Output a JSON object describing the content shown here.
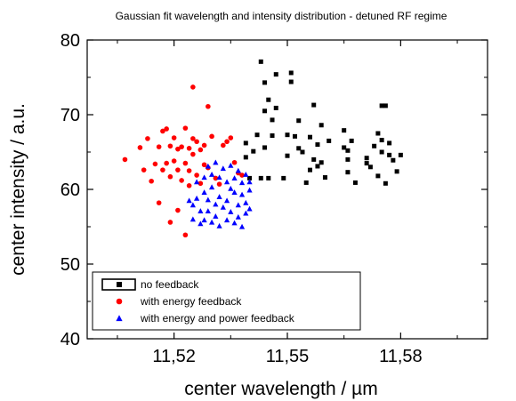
{
  "chart_data": {
    "type": "scatter",
    "title": "Gaussian fit wavelength and intensity distribution - detuned RF regime",
    "xlabel": "center wavelength / µm",
    "ylabel": "center intensity / a.u.",
    "xlim": [
      11.497,
      11.603
    ],
    "ylim": [
      40,
      80
    ],
    "x_ticks": [
      11.52,
      11.55,
      11.58
    ],
    "x_tick_labels": [
      "11,52",
      "11,55",
      "11,58"
    ],
    "x_minor_ticks": [
      11.505,
      11.535,
      11.565,
      11.595
    ],
    "y_ticks": [
      40,
      50,
      60,
      70,
      80
    ],
    "y_tick_labels": [
      "40",
      "50",
      "60",
      "70",
      "80"
    ],
    "y_minor_ticks": [
      45,
      55,
      65,
      75
    ],
    "grid": false,
    "legend_position": "bottom-left",
    "series": [
      {
        "name": "no feedback",
        "marker": "square",
        "color": "#000000",
        "points": [
          [
            11.539,
            66.2
          ],
          [
            11.539,
            64.3
          ],
          [
            11.54,
            61.5
          ],
          [
            11.541,
            65.1
          ],
          [
            11.542,
            67.3
          ],
          [
            11.543,
            61.5
          ],
          [
            11.543,
            77.1
          ],
          [
            11.544,
            74.3
          ],
          [
            11.544,
            70.5
          ],
          [
            11.544,
            65.6
          ],
          [
            11.545,
            61.5
          ],
          [
            11.545,
            72.0
          ],
          [
            11.546,
            69.3
          ],
          [
            11.546,
            67.2
          ],
          [
            11.547,
            70.9
          ],
          [
            11.547,
            75.4
          ],
          [
            11.549,
            61.5
          ],
          [
            11.55,
            67.3
          ],
          [
            11.55,
            64.5
          ],
          [
            11.551,
            75.6
          ],
          [
            11.551,
            74.4
          ],
          [
            11.552,
            67.1
          ],
          [
            11.553,
            69.2
          ],
          [
            11.553,
            65.5
          ],
          [
            11.554,
            65.0
          ],
          [
            11.555,
            60.9
          ],
          [
            11.556,
            62.6
          ],
          [
            11.556,
            67.0
          ],
          [
            11.557,
            64.0
          ],
          [
            11.557,
            71.3
          ],
          [
            11.558,
            66.0
          ],
          [
            11.558,
            63.1
          ],
          [
            11.559,
            68.6
          ],
          [
            11.559,
            63.6
          ],
          [
            11.56,
            61.6
          ],
          [
            11.561,
            66.5
          ],
          [
            11.565,
            67.9
          ],
          [
            11.565,
            65.6
          ],
          [
            11.566,
            64.0
          ],
          [
            11.566,
            62.3
          ],
          [
            11.566,
            65.2
          ],
          [
            11.567,
            66.5
          ],
          [
            11.568,
            60.9
          ],
          [
            11.571,
            63.5
          ],
          [
            11.571,
            64.2
          ],
          [
            11.572,
            63.0
          ],
          [
            11.573,
            65.8
          ],
          [
            11.574,
            61.8
          ],
          [
            11.574,
            67.5
          ],
          [
            11.575,
            66.6
          ],
          [
            11.575,
            71.2
          ],
          [
            11.575,
            65.0
          ],
          [
            11.576,
            60.8
          ],
          [
            11.576,
            71.2
          ],
          [
            11.577,
            66.2
          ],
          [
            11.577,
            64.6
          ],
          [
            11.578,
            63.9
          ],
          [
            11.579,
            62.4
          ],
          [
            11.58,
            64.6
          ]
        ]
      },
      {
        "name": "with energy feedback",
        "marker": "circle",
        "color": "#ff0000",
        "points": [
          [
            11.507,
            64.0
          ],
          [
            11.511,
            65.6
          ],
          [
            11.512,
            62.6
          ],
          [
            11.513,
            66.8
          ],
          [
            11.514,
            61.1
          ],
          [
            11.515,
            63.4
          ],
          [
            11.516,
            65.7
          ],
          [
            11.516,
            58.2
          ],
          [
            11.517,
            67.8
          ],
          [
            11.517,
            62.6
          ],
          [
            11.518,
            63.5
          ],
          [
            11.518,
            68.1
          ],
          [
            11.519,
            65.8
          ],
          [
            11.519,
            61.7
          ],
          [
            11.519,
            55.6
          ],
          [
            11.52,
            66.9
          ],
          [
            11.52,
            63.8
          ],
          [
            11.521,
            65.4
          ],
          [
            11.521,
            62.6
          ],
          [
            11.521,
            57.2
          ],
          [
            11.522,
            65.7
          ],
          [
            11.522,
            61.2
          ],
          [
            11.523,
            68.2
          ],
          [
            11.523,
            63.5
          ],
          [
            11.523,
            53.9
          ],
          [
            11.524,
            65.5
          ],
          [
            11.524,
            62.5
          ],
          [
            11.524,
            60.5
          ],
          [
            11.525,
            66.8
          ],
          [
            11.525,
            64.7
          ],
          [
            11.525,
            73.7
          ],
          [
            11.526,
            61.9
          ],
          [
            11.526,
            66.4
          ],
          [
            11.527,
            65.3
          ],
          [
            11.527,
            60.8
          ],
          [
            11.528,
            63.3
          ],
          [
            11.528,
            65.9
          ],
          [
            11.529,
            71.1
          ],
          [
            11.529,
            62.9
          ],
          [
            11.53,
            67.1
          ],
          [
            11.531,
            61.5
          ],
          [
            11.532,
            60.7
          ],
          [
            11.533,
            65.9
          ],
          [
            11.534,
            66.4
          ],
          [
            11.535,
            66.9
          ],
          [
            11.536,
            63.6
          ],
          [
            11.537,
            62.2
          ],
          [
            11.538,
            61.9
          ]
        ]
      },
      {
        "name": "with energy and power feedback",
        "marker": "triangle",
        "color": "#0000ff",
        "points": [
          [
            11.524,
            58.5
          ],
          [
            11.525,
            57.9
          ],
          [
            11.525,
            56.0
          ],
          [
            11.526,
            61.0
          ],
          [
            11.526,
            58.8
          ],
          [
            11.527,
            57.1
          ],
          [
            11.527,
            55.4
          ],
          [
            11.528,
            61.6
          ],
          [
            11.528,
            59.6
          ],
          [
            11.528,
            55.9
          ],
          [
            11.529,
            63.1
          ],
          [
            11.529,
            58.6
          ],
          [
            11.529,
            57.1
          ],
          [
            11.53,
            62.0
          ],
          [
            11.53,
            60.3
          ],
          [
            11.53,
            55.6
          ],
          [
            11.531,
            63.6
          ],
          [
            11.531,
            58.0
          ],
          [
            11.531,
            56.4
          ],
          [
            11.532,
            61.6
          ],
          [
            11.532,
            59.0
          ],
          [
            11.532,
            55.1
          ],
          [
            11.533,
            62.8
          ],
          [
            11.533,
            57.6
          ],
          [
            11.534,
            61.0
          ],
          [
            11.534,
            58.5
          ],
          [
            11.534,
            55.9
          ],
          [
            11.535,
            63.2
          ],
          [
            11.535,
            60.1
          ],
          [
            11.535,
            57.0
          ],
          [
            11.536,
            61.5
          ],
          [
            11.536,
            59.6
          ],
          [
            11.536,
            55.5
          ],
          [
            11.537,
            62.5
          ],
          [
            11.537,
            57.9
          ],
          [
            11.537,
            56.3
          ],
          [
            11.538,
            60.9
          ],
          [
            11.538,
            59.3
          ],
          [
            11.538,
            55.0
          ],
          [
            11.539,
            62.0
          ],
          [
            11.539,
            58.2
          ],
          [
            11.539,
            56.8
          ],
          [
            11.54,
            61.0
          ],
          [
            11.54,
            59.9
          ],
          [
            11.54,
            57.4
          ]
        ]
      }
    ]
  }
}
